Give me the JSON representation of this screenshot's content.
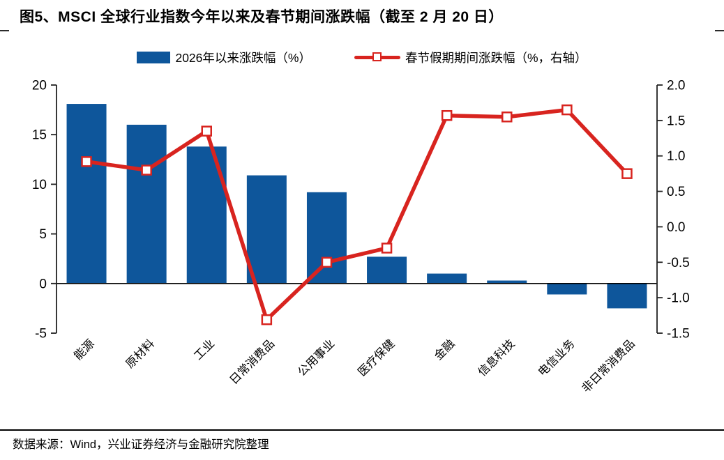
{
  "header": {
    "title": "图5、MSCI 全球行业指数今年以来及春节期间涨跌幅（截至 2 月 20 日）"
  },
  "legend": {
    "bar_label": "2026年以来涨跌幅（%）",
    "line_label": "春节假期期间涨跌幅（%，右轴）"
  },
  "footer": {
    "source": "数据来源：Wind，兴业证券经济与金融研究院整理"
  },
  "colors": {
    "bar": "#0e569b",
    "line": "#d8241f",
    "axis": "#222222",
    "text": "#000000"
  },
  "chart_data": {
    "type": "bar",
    "subtype": "bar+line-dual-axis",
    "title": "图5、MSCI 全球行业指数今年以来及春节期间涨跌幅（截至 2 月 20 日）",
    "categories": [
      "能源",
      "原材料",
      "工业",
      "日常消费品",
      "公用事业",
      "医疗保健",
      "金融",
      "信息科技",
      "电信业务",
      "非日常消费品"
    ],
    "series": [
      {
        "name": "2026年以来涨跌幅（%）",
        "type": "bar",
        "axis": "left",
        "color": "#0e569b",
        "values": [
          18.1,
          16.0,
          13.8,
          10.9,
          9.2,
          2.7,
          1.0,
          0.3,
          -1.1,
          -2.5
        ]
      },
      {
        "name": "春节假期期间涨跌幅（%，右轴）",
        "type": "line",
        "axis": "right",
        "color": "#d8241f",
        "marker": "open-square",
        "values": [
          0.92,
          0.8,
          1.35,
          -1.31,
          -0.5,
          -0.3,
          1.57,
          1.55,
          1.65,
          0.75
        ]
      }
    ],
    "left_axis": {
      "min": -5,
      "max": 20,
      "ticks": [
        "20",
        "15",
        "10",
        "5",
        "0",
        "-5"
      ]
    },
    "right_axis": {
      "min": -1.5,
      "max": 2.0,
      "ticks": [
        "2.0",
        "1.5",
        "1.0",
        "0.5",
        "0.0",
        "-0.5",
        "-1.0",
        "-1.5"
      ]
    },
    "grid": false,
    "legend_position": "top",
    "xlabel": "",
    "ylabel": ""
  }
}
